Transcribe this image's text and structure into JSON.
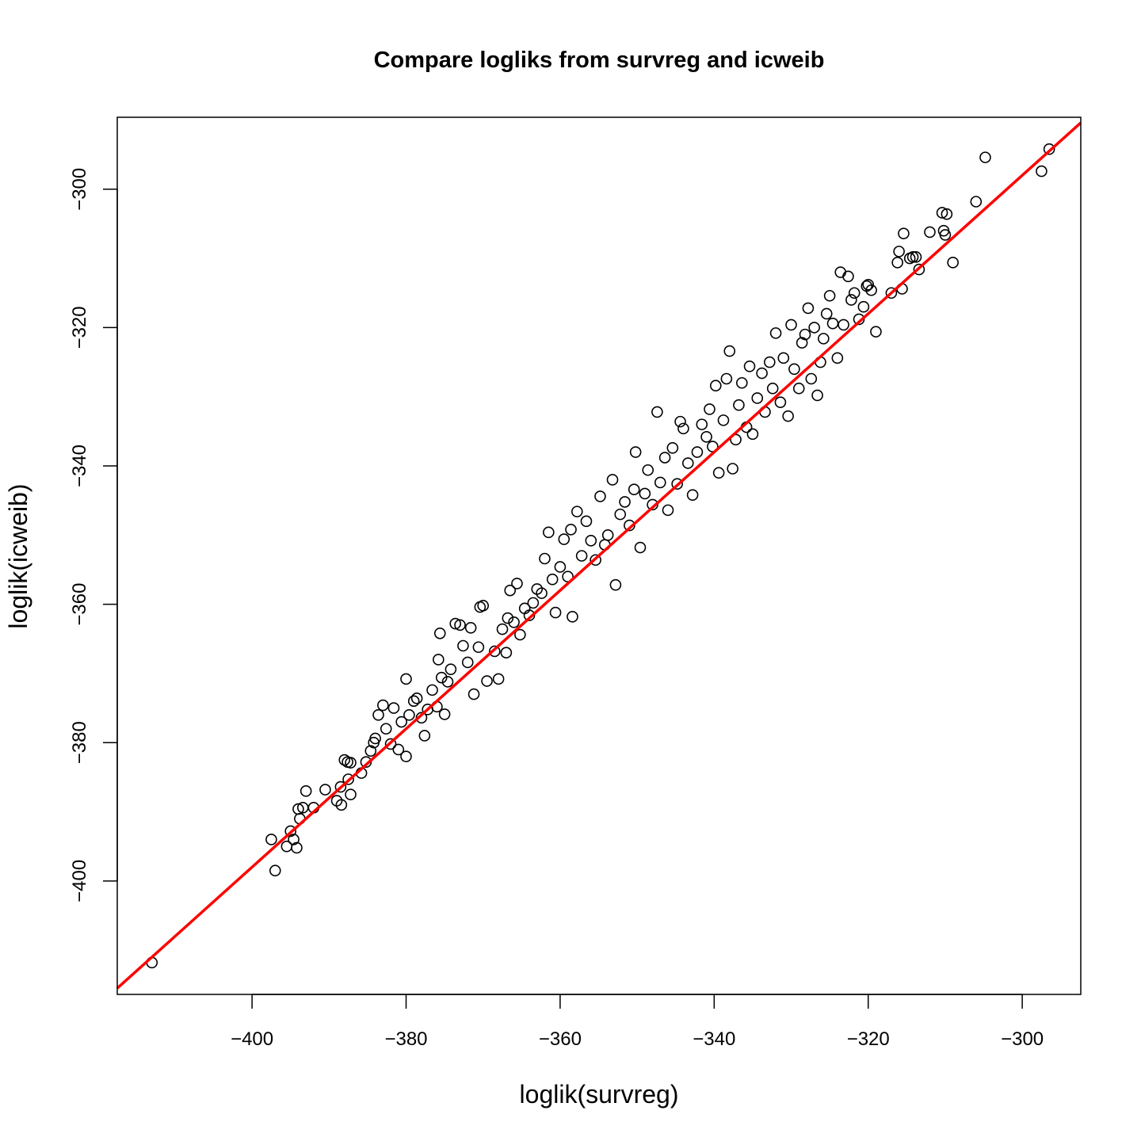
{
  "chart_data": {
    "type": "scatter",
    "title": "Compare logliks from survreg and icweib",
    "xlabel": "loglik(survreg)",
    "ylabel": "loglik(icweib)",
    "xlim": [
      -417.5,
      -292.4
    ],
    "ylim": [
      -416.4,
      -289.6
    ],
    "xticks": [
      -400,
      -380,
      -360,
      -340,
      -320,
      -300
    ],
    "xtick_labels": [
      "−400",
      "−380",
      "−360",
      "−340",
      "−320",
      "−300"
    ],
    "yticks": [
      -400,
      -380,
      -360,
      -340,
      -320,
      -300
    ],
    "ytick_labels": [
      "−400",
      "−380",
      "−360",
      "−340",
      "−320",
      "−300"
    ],
    "grid": false,
    "reference_line": {
      "slope": 1,
      "intercept": 2,
      "color": "#ff0000"
    },
    "point_color": "#000000",
    "points": [
      [
        -413.0,
        -411.8
      ],
      [
        -397.0,
        -398.5
      ],
      [
        -397.5,
        -394.0
      ],
      [
        -395.5,
        -395.0
      ],
      [
        -394.6,
        -394.0
      ],
      [
        -394.2,
        -395.2
      ],
      [
        -395.0,
        -392.8
      ],
      [
        -393.8,
        -391.0
      ],
      [
        -393.4,
        -389.4
      ],
      [
        -394.0,
        -389.6
      ],
      [
        -393.0,
        -387.0
      ],
      [
        -392.0,
        -389.4
      ],
      [
        -390.5,
        -386.8
      ],
      [
        -389.0,
        -388.4
      ],
      [
        -388.4,
        -389.0
      ],
      [
        -388.5,
        -386.4
      ],
      [
        -387.5,
        -385.3
      ],
      [
        -387.2,
        -387.5
      ],
      [
        -388.0,
        -382.5
      ],
      [
        -387.6,
        -382.8
      ],
      [
        -387.2,
        -382.9
      ],
      [
        -385.8,
        -384.4
      ],
      [
        -385.2,
        -382.8
      ],
      [
        -384.6,
        -381.2
      ],
      [
        -384.2,
        -380.0
      ],
      [
        -384.0,
        -379.4
      ],
      [
        -383.6,
        -376.0
      ],
      [
        -383.0,
        -374.6
      ],
      [
        -382.6,
        -378.0
      ],
      [
        -382.0,
        -380.2
      ],
      [
        -381.6,
        -375.0
      ],
      [
        -381.0,
        -381.0
      ],
      [
        -380.6,
        -377.0
      ],
      [
        -380.0,
        -382.0
      ],
      [
        -379.6,
        -376.0
      ],
      [
        -380.0,
        -370.8
      ],
      [
        -379.0,
        -374.0
      ],
      [
        -378.6,
        -373.6
      ],
      [
        -378.0,
        -376.4
      ],
      [
        -377.6,
        -379.0
      ],
      [
        -377.2,
        -375.2
      ],
      [
        -376.6,
        -372.4
      ],
      [
        -376.0,
        -374.8
      ],
      [
        -375.6,
        -364.2
      ],
      [
        -375.8,
        -368.0
      ],
      [
        -375.4,
        -370.6
      ],
      [
        -375.0,
        -375.9
      ],
      [
        -374.6,
        -371.2
      ],
      [
        -374.2,
        -369.4
      ],
      [
        -373.6,
        -362.8
      ],
      [
        -373.0,
        -363.0
      ],
      [
        -372.6,
        -366.0
      ],
      [
        -372.0,
        -368.4
      ],
      [
        -371.6,
        -363.4
      ],
      [
        -371.2,
        -373.0
      ],
      [
        -370.6,
        -366.2
      ],
      [
        -370.4,
        -360.4
      ],
      [
        -370.0,
        -360.2
      ],
      [
        -369.5,
        -371.1
      ],
      [
        -368.5,
        -366.8
      ],
      [
        -368.0,
        -370.8
      ],
      [
        -367.5,
        -363.6
      ],
      [
        -367.0,
        -367.0
      ],
      [
        -366.8,
        -362.0
      ],
      [
        -366.5,
        -358.0
      ],
      [
        -366.0,
        -362.6
      ],
      [
        -365.6,
        -357.0
      ],
      [
        -365.2,
        -364.4
      ],
      [
        -364.6,
        -360.6
      ],
      [
        -364.0,
        -361.6
      ],
      [
        -363.5,
        -359.8
      ],
      [
        -363.0,
        -357.8
      ],
      [
        -362.4,
        -358.4
      ],
      [
        -362.0,
        -353.4
      ],
      [
        -361.5,
        -349.6
      ],
      [
        -361.0,
        -356.4
      ],
      [
        -360.6,
        -361.2
      ],
      [
        -360.0,
        -354.6
      ],
      [
        -359.5,
        -350.6
      ],
      [
        -359.0,
        -356.0
      ],
      [
        -358.6,
        -349.2
      ],
      [
        -358.4,
        -361.8
      ],
      [
        -357.8,
        -346.6
      ],
      [
        -357.2,
        -353.0
      ],
      [
        -356.6,
        -348.0
      ],
      [
        -356.0,
        -350.8
      ],
      [
        -355.4,
        -353.6
      ],
      [
        -354.8,
        -344.4
      ],
      [
        -354.2,
        -351.4
      ],
      [
        -353.8,
        -350.0
      ],
      [
        -353.2,
        -342.0
      ],
      [
        -352.8,
        -357.2
      ],
      [
        -352.2,
        -347.0
      ],
      [
        -351.6,
        -345.2
      ],
      [
        -351.0,
        -348.6
      ],
      [
        -350.4,
        -343.4
      ],
      [
        -350.2,
        -338.0
      ],
      [
        -349.6,
        -351.8
      ],
      [
        -349.0,
        -344.0
      ],
      [
        -348.6,
        -340.6
      ],
      [
        -348.0,
        -345.6
      ],
      [
        -347.4,
        -332.2
      ],
      [
        -347.0,
        -342.4
      ],
      [
        -346.4,
        -338.8
      ],
      [
        -346.0,
        -346.4
      ],
      [
        -345.4,
        -337.4
      ],
      [
        -344.8,
        -342.6
      ],
      [
        -344.4,
        -333.6
      ],
      [
        -344.0,
        -334.6
      ],
      [
        -343.4,
        -339.6
      ],
      [
        -342.8,
        -344.2
      ],
      [
        -342.2,
        -338.0
      ],
      [
        -341.6,
        -334.0
      ],
      [
        -341.0,
        -335.8
      ],
      [
        -340.6,
        -331.8
      ],
      [
        -340.2,
        -337.2
      ],
      [
        -339.8,
        -328.4
      ],
      [
        -339.4,
        -341.0
      ],
      [
        -338.8,
        -333.4
      ],
      [
        -338.4,
        -327.4
      ],
      [
        -338.0,
        -323.4
      ],
      [
        -337.6,
        -340.4
      ],
      [
        -337.2,
        -336.2
      ],
      [
        -336.8,
        -331.2
      ],
      [
        -336.4,
        -328.0
      ],
      [
        -335.8,
        -334.4
      ],
      [
        -335.4,
        -325.6
      ],
      [
        -335.0,
        -335.4
      ],
      [
        -334.4,
        -330.2
      ],
      [
        -333.8,
        -326.6
      ],
      [
        -333.4,
        -332.2
      ],
      [
        -332.8,
        -325.0
      ],
      [
        -332.4,
        -328.8
      ],
      [
        -332.0,
        -320.8
      ],
      [
        -331.4,
        -330.8
      ],
      [
        -331.0,
        -324.4
      ],
      [
        -330.4,
        -332.8
      ],
      [
        -330.0,
        -319.6
      ],
      [
        -329.6,
        -326.0
      ],
      [
        -329.0,
        -328.8
      ],
      [
        -328.6,
        -322.2
      ],
      [
        -328.2,
        -321.0
      ],
      [
        -327.8,
        -317.2
      ],
      [
        -327.4,
        -327.4
      ],
      [
        -327.0,
        -320.0
      ],
      [
        -326.6,
        -329.8
      ],
      [
        -326.2,
        -325.0
      ],
      [
        -325.8,
        -321.6
      ],
      [
        -325.4,
        -318.0
      ],
      [
        -325.0,
        -315.4
      ],
      [
        -324.6,
        -319.4
      ],
      [
        -324.0,
        -324.4
      ],
      [
        -323.6,
        -312.0
      ],
      [
        -323.2,
        -319.6
      ],
      [
        -322.6,
        -312.6
      ],
      [
        -322.2,
        -316.0
      ],
      [
        -321.8,
        -315.0
      ],
      [
        -321.2,
        -318.8
      ],
      [
        -320.6,
        -317.0
      ],
      [
        -320.2,
        -314.0
      ],
      [
        -320.0,
        -313.8
      ],
      [
        -319.6,
        -314.6
      ],
      [
        -319.0,
        -320.6
      ],
      [
        -317.0,
        -315.0
      ],
      [
        -316.2,
        -310.6
      ],
      [
        -316.0,
        -309.0
      ],
      [
        -315.4,
        -306.4
      ],
      [
        -315.6,
        -314.4
      ],
      [
        -314.6,
        -310.0
      ],
      [
        -314.2,
        -309.8
      ],
      [
        -313.8,
        -309.8
      ],
      [
        -313.4,
        -311.6
      ],
      [
        -312.0,
        -306.2
      ],
      [
        -310.4,
        -303.4
      ],
      [
        -310.2,
        -306.0
      ],
      [
        -310.0,
        -306.6
      ],
      [
        -309.8,
        -303.6
      ],
      [
        -309.0,
        -310.6
      ],
      [
        -306.0,
        -301.8
      ],
      [
        -304.8,
        -295.4
      ],
      [
        -297.5,
        -297.4
      ],
      [
        -296.5,
        -294.2
      ]
    ]
  }
}
